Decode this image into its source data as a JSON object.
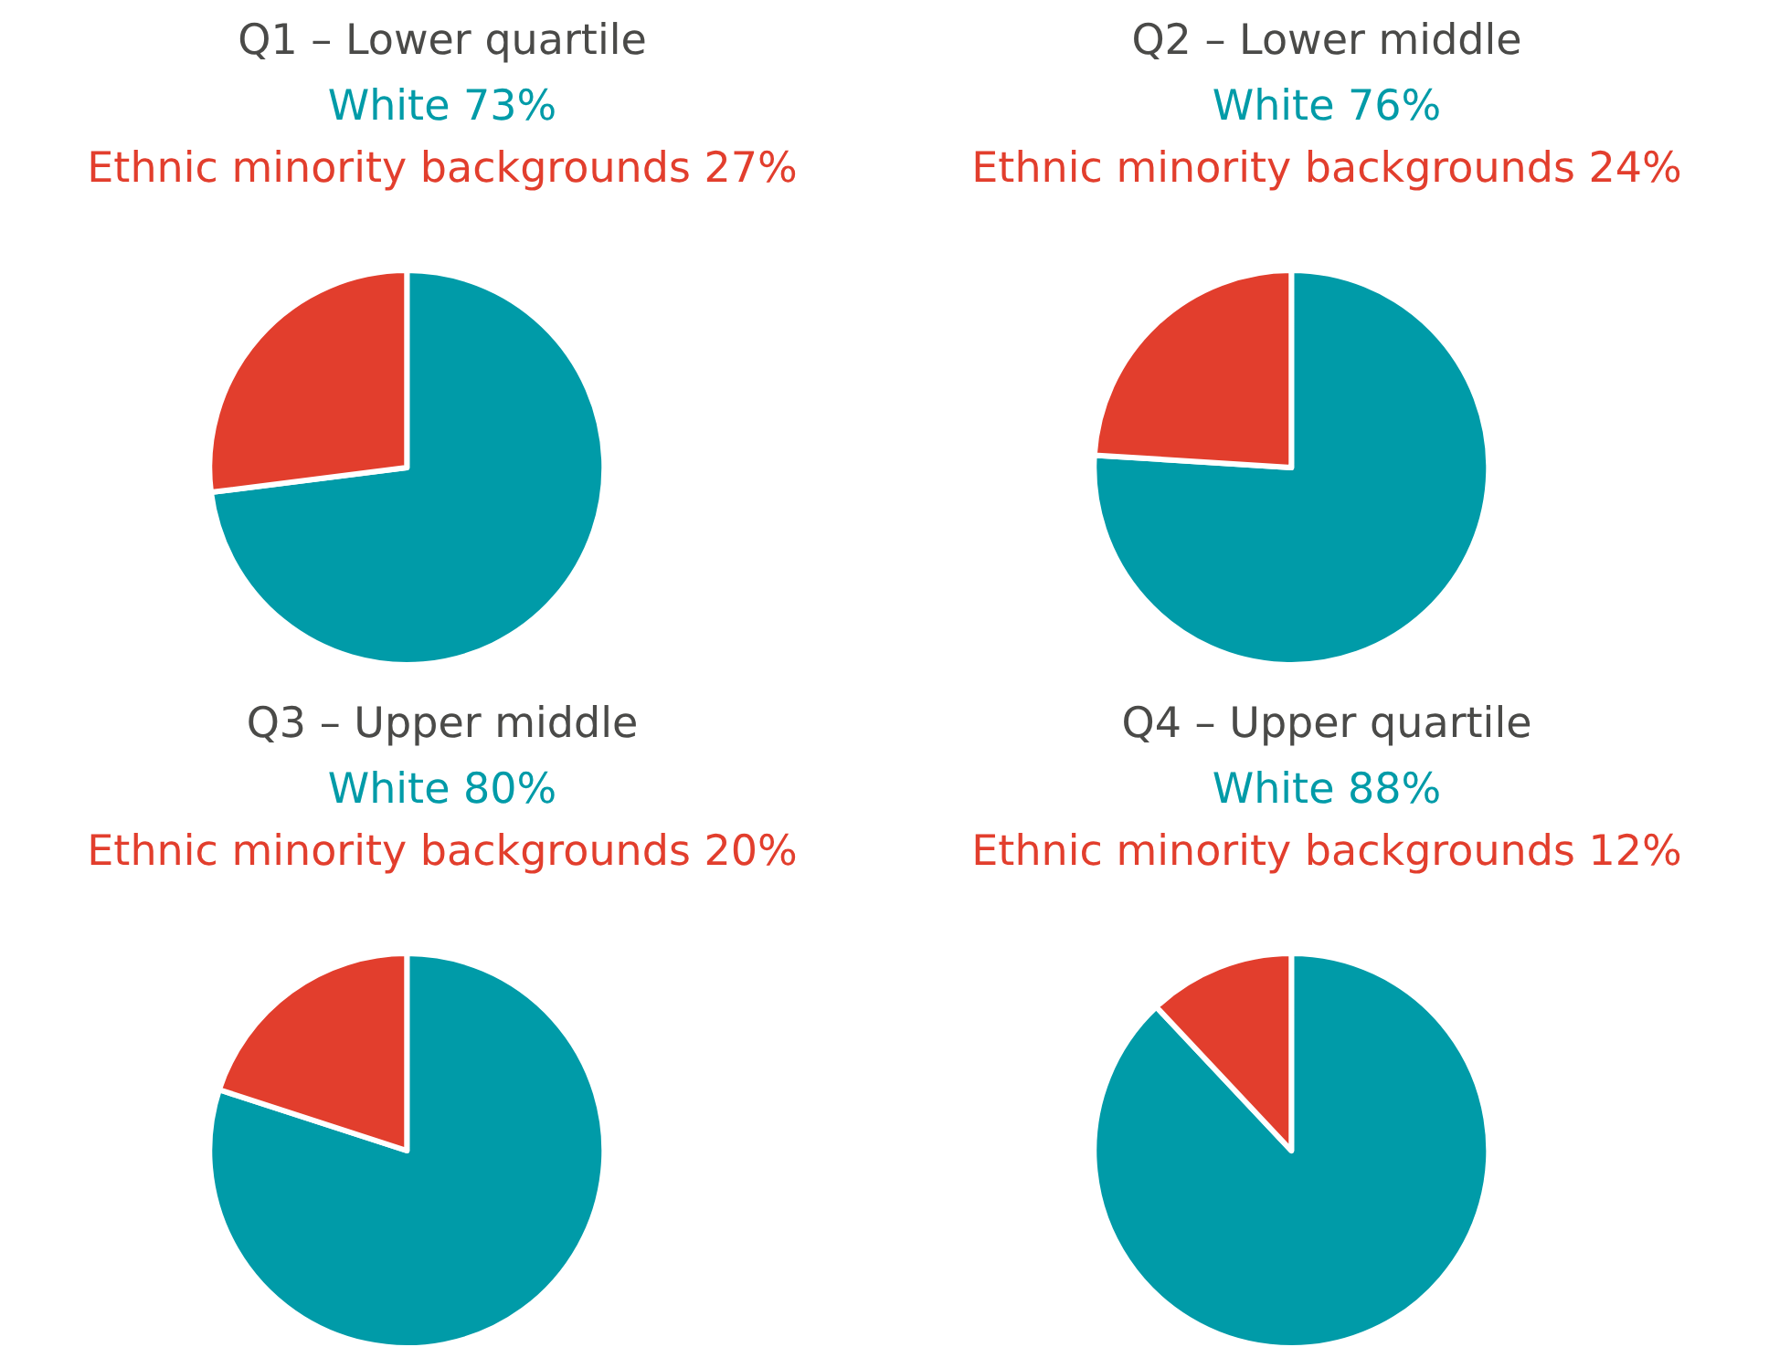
{
  "chart_data": [
    {
      "type": "pie",
      "title": "Q1 – Lower quartile",
      "categories": [
        "White",
        "Ethnic minority backgrounds"
      ],
      "values": [
        73,
        27
      ],
      "value_labels": [
        "73%",
        "27%"
      ],
      "colors": [
        "#009ba8",
        "#e23e2d"
      ]
    },
    {
      "type": "pie",
      "title": "Q2 – Lower middle",
      "categories": [
        "White",
        "Ethnic minority backgrounds"
      ],
      "values": [
        76,
        24
      ],
      "value_labels": [
        "76%",
        "24%"
      ],
      "colors": [
        "#009ba8",
        "#e23e2d"
      ]
    },
    {
      "type": "pie",
      "title": "Q3 – Upper middle",
      "categories": [
        "White",
        "Ethnic minority backgrounds"
      ],
      "values": [
        80,
        20
      ],
      "value_labels": [
        "80%",
        "20%"
      ],
      "colors": [
        "#009ba8",
        "#e23e2d"
      ]
    },
    {
      "type": "pie",
      "title": "Q4 – Upper quartile",
      "categories": [
        "White",
        "Ethnic minority backgrounds"
      ],
      "values": [
        88,
        12
      ],
      "value_labels": [
        "88%",
        "12%"
      ],
      "colors": [
        "#009ba8",
        "#e23e2d"
      ]
    }
  ]
}
